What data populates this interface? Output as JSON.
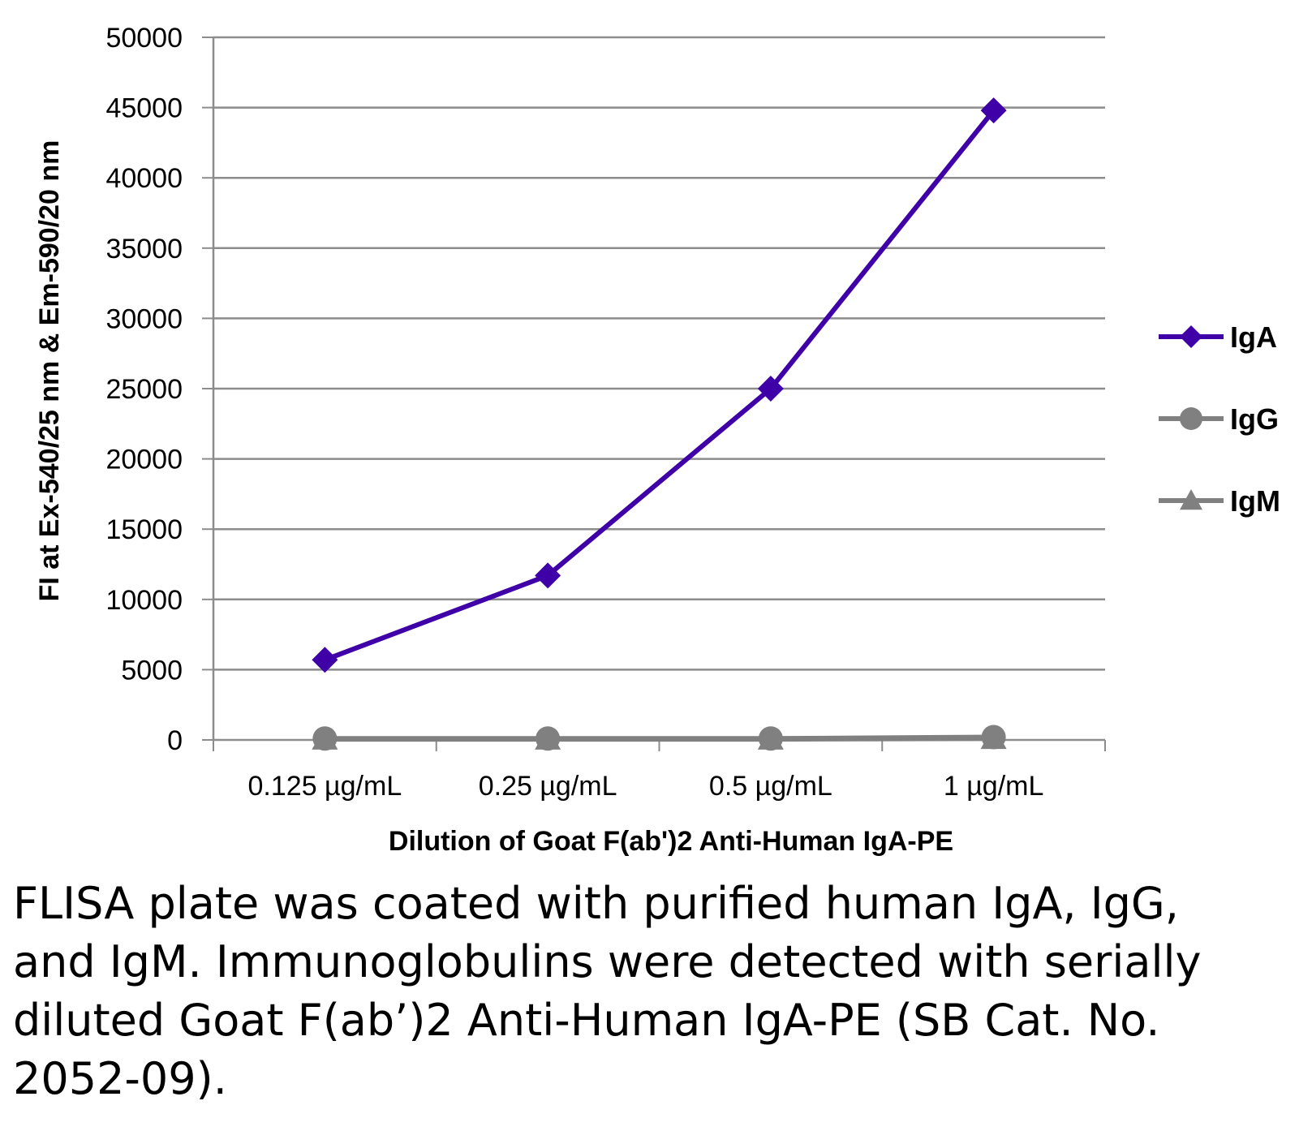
{
  "chart_data": {
    "type": "line",
    "categories": [
      "0.125 µg/mL",
      "0.25 µg/mL",
      "0.5 µg/mL",
      "1 µg/mL"
    ],
    "series": [
      {
        "name": "IgA",
        "values": [
          5700,
          11700,
          25000,
          44800
        ],
        "color": "#3f00a8",
        "marker": "diamond"
      },
      {
        "name": "IgG",
        "values": [
          100,
          100,
          100,
          200
        ],
        "color": "#808080",
        "marker": "circle"
      },
      {
        "name": "IgM",
        "values": [
          50,
          50,
          50,
          100
        ],
        "color": "#808080",
        "marker": "triangle"
      }
    ],
    "xlabel": "Dilution of Goat F(ab')2 Anti-Human IgA-PE",
    "ylabel": "FI at Ex-540/25 nm & Em-590/20 nm",
    "ylim": [
      0,
      50000
    ],
    "yticks": [
      0,
      5000,
      10000,
      15000,
      20000,
      25000,
      30000,
      35000,
      40000,
      45000,
      50000
    ],
    "grid": true,
    "legend_position": "right"
  },
  "caption": "FLISA plate was coated with purified human IgA, IgG, and IgM.  Immunoglobulins were detected with serially diluted Goat F(ab’)2 Anti-Human IgA-PE (SB Cat. No. 2052-09)."
}
